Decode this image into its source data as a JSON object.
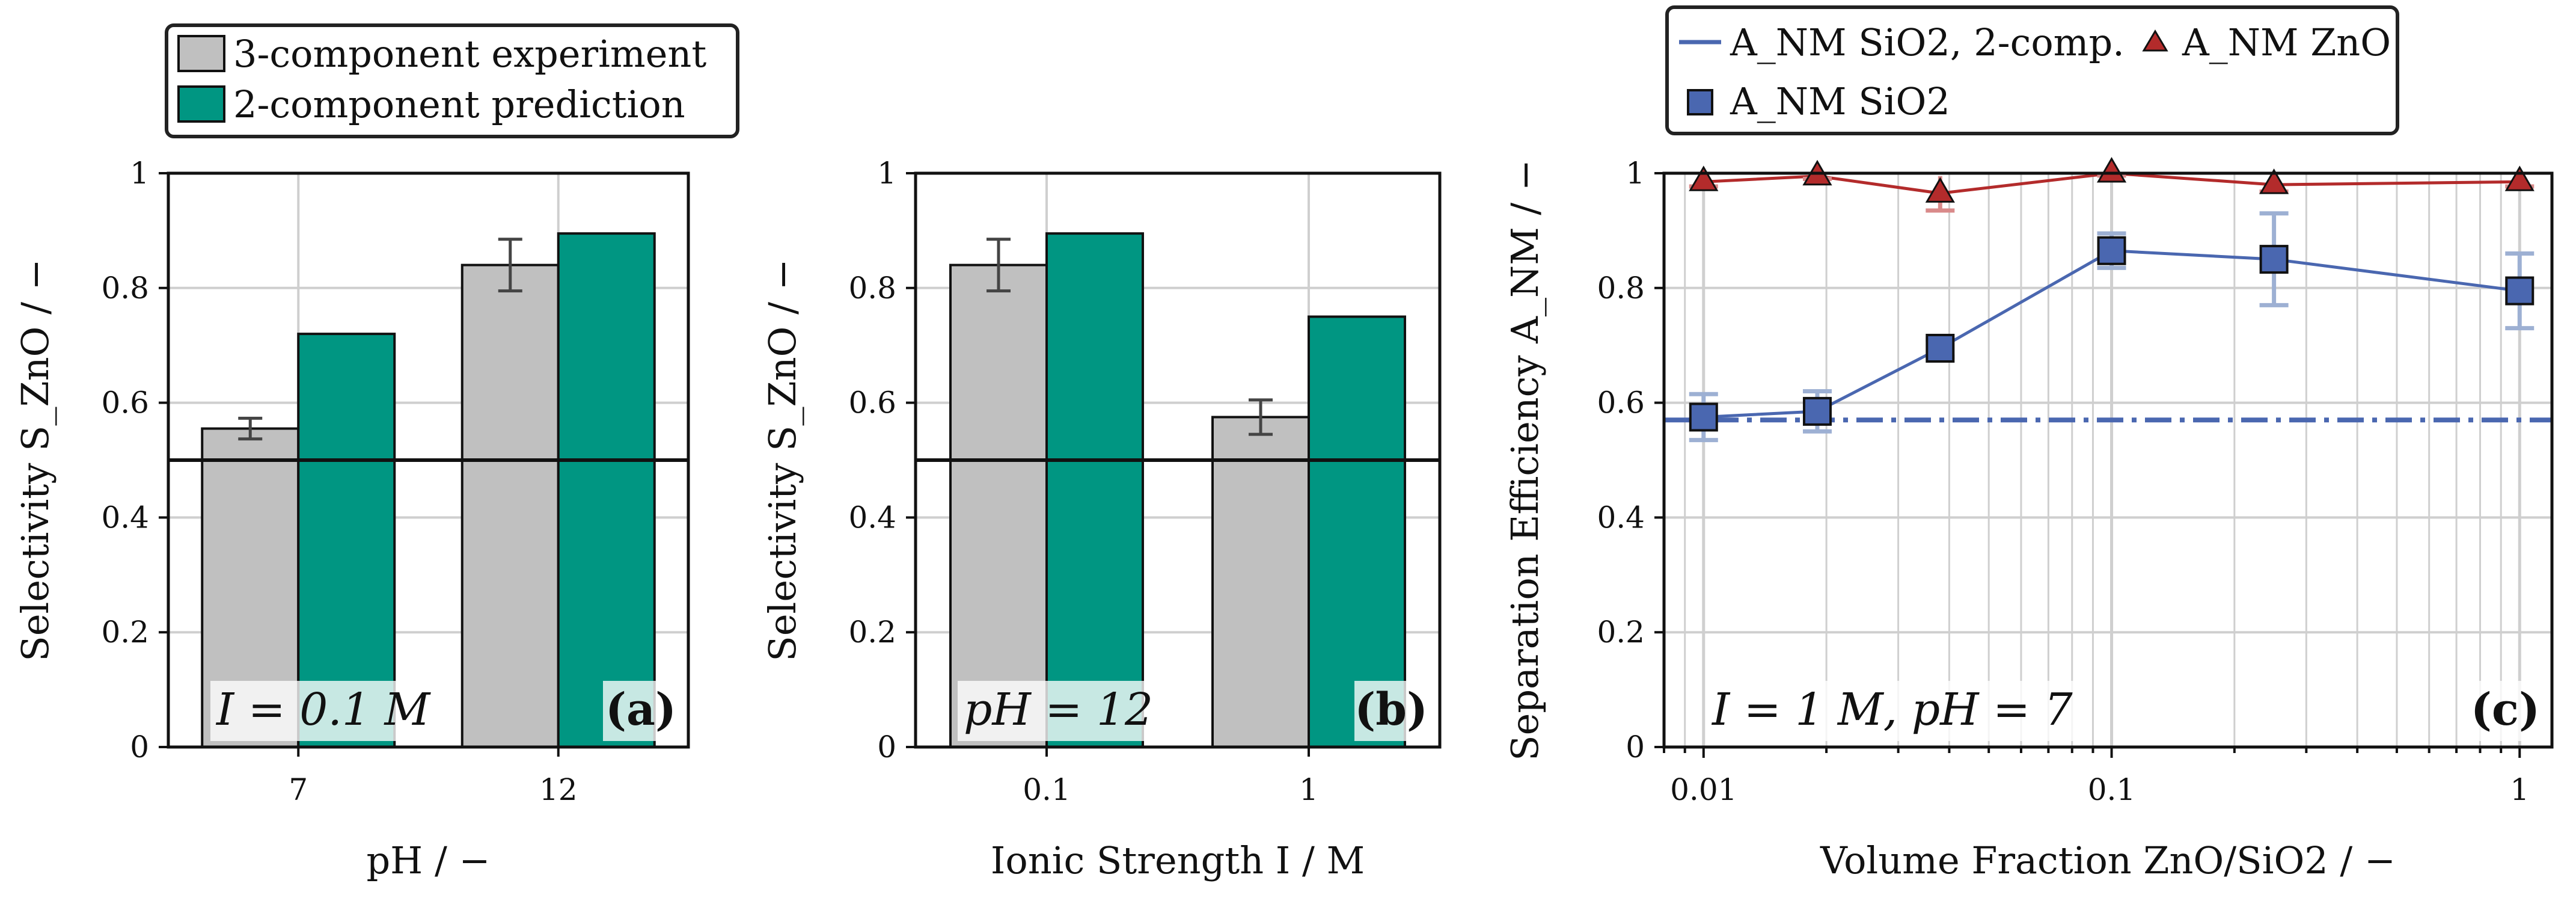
{
  "colors": {
    "experiment": "#c0c0c0",
    "prediction": "#009682",
    "sio2": "#4a67b0",
    "sio2_light": "#9db0d3",
    "zno": "#b32b2b",
    "grid": "#cfcfcf",
    "axis": "#111111"
  },
  "legend_a": {
    "experiment": "3-component experiment",
    "prediction": "2-component prediction"
  },
  "legend_c": {
    "sio2_2comp": "A_NM SiO2, 2-comp.",
    "zno": "A_NM ZnO",
    "sio2": "A_NM SiO2"
  },
  "chart_data": [
    {
      "type": "bar",
      "panel": "(a)",
      "annotation": "I = 0.1 M",
      "xlabel": "pH / −",
      "ylabel": "Selectivity S_ZnO / −",
      "ylim": [
        0,
        1
      ],
      "yticks": [
        "0",
        "0.2",
        "0.4",
        "0.6",
        "0.8",
        "1"
      ],
      "reference_line": 0.5,
      "categories": [
        "7",
        "12"
      ],
      "series": [
        {
          "name": "3-component experiment",
          "values": [
            0.555,
            0.84
          ],
          "errors": [
            0.018,
            0.045
          ]
        },
        {
          "name": "2-component prediction",
          "values": [
            0.72,
            0.895
          ]
        }
      ]
    },
    {
      "type": "bar",
      "panel": "(b)",
      "annotation": "pH = 12",
      "xlabel": "Ionic Strength I / M",
      "ylabel": "Selectivity S_ZnO / −",
      "ylim": [
        0,
        1
      ],
      "yticks": [
        "0",
        "0.2",
        "0.4",
        "0.6",
        "0.8",
        "1"
      ],
      "reference_line": 0.5,
      "categories": [
        "0.1",
        "1"
      ],
      "series": [
        {
          "name": "3-component experiment",
          "values": [
            0.84,
            0.575
          ],
          "errors": [
            0.045,
            0.03
          ]
        },
        {
          "name": "2-component prediction",
          "values": [
            0.895,
            0.75
          ]
        }
      ]
    },
    {
      "type": "line",
      "panel": "(c)",
      "annotation": "I = 1 M, pH = 7",
      "xlabel": "Volume Fraction ZnO/SiO2 / −",
      "ylabel": "Separation Efficiency A_NM / −",
      "xscale": "log",
      "xlim": [
        0.008,
        1.2
      ],
      "ylim": [
        0,
        1
      ],
      "xticks": [
        "0.01",
        "0.1",
        "1"
      ],
      "yticks": [
        "0",
        "0.2",
        "0.4",
        "0.6",
        "0.8",
        "1"
      ],
      "series": [
        {
          "name": "A_NM ZnO",
          "x": [
            0.01,
            0.019,
            0.038,
            0.1,
            0.25,
            1.0
          ],
          "y": [
            0.985,
            0.995,
            0.965,
            1.0,
            0.98,
            0.985
          ],
          "errors": [
            0.008,
            0.005,
            0.03,
            0.004,
            0.012,
            0.008
          ]
        },
        {
          "name": "A_NM SiO2",
          "x": [
            0.01,
            0.019,
            0.038,
            0.1,
            0.25,
            1.0
          ],
          "y": [
            0.575,
            0.585,
            0.695,
            0.865,
            0.85,
            0.795
          ],
          "errors": [
            0.04,
            0.035,
            0.015,
            0.03,
            0.08,
            0.065
          ]
        },
        {
          "name": "A_NM SiO2, 2-comp.",
          "constant": 0.57
        }
      ]
    }
  ]
}
